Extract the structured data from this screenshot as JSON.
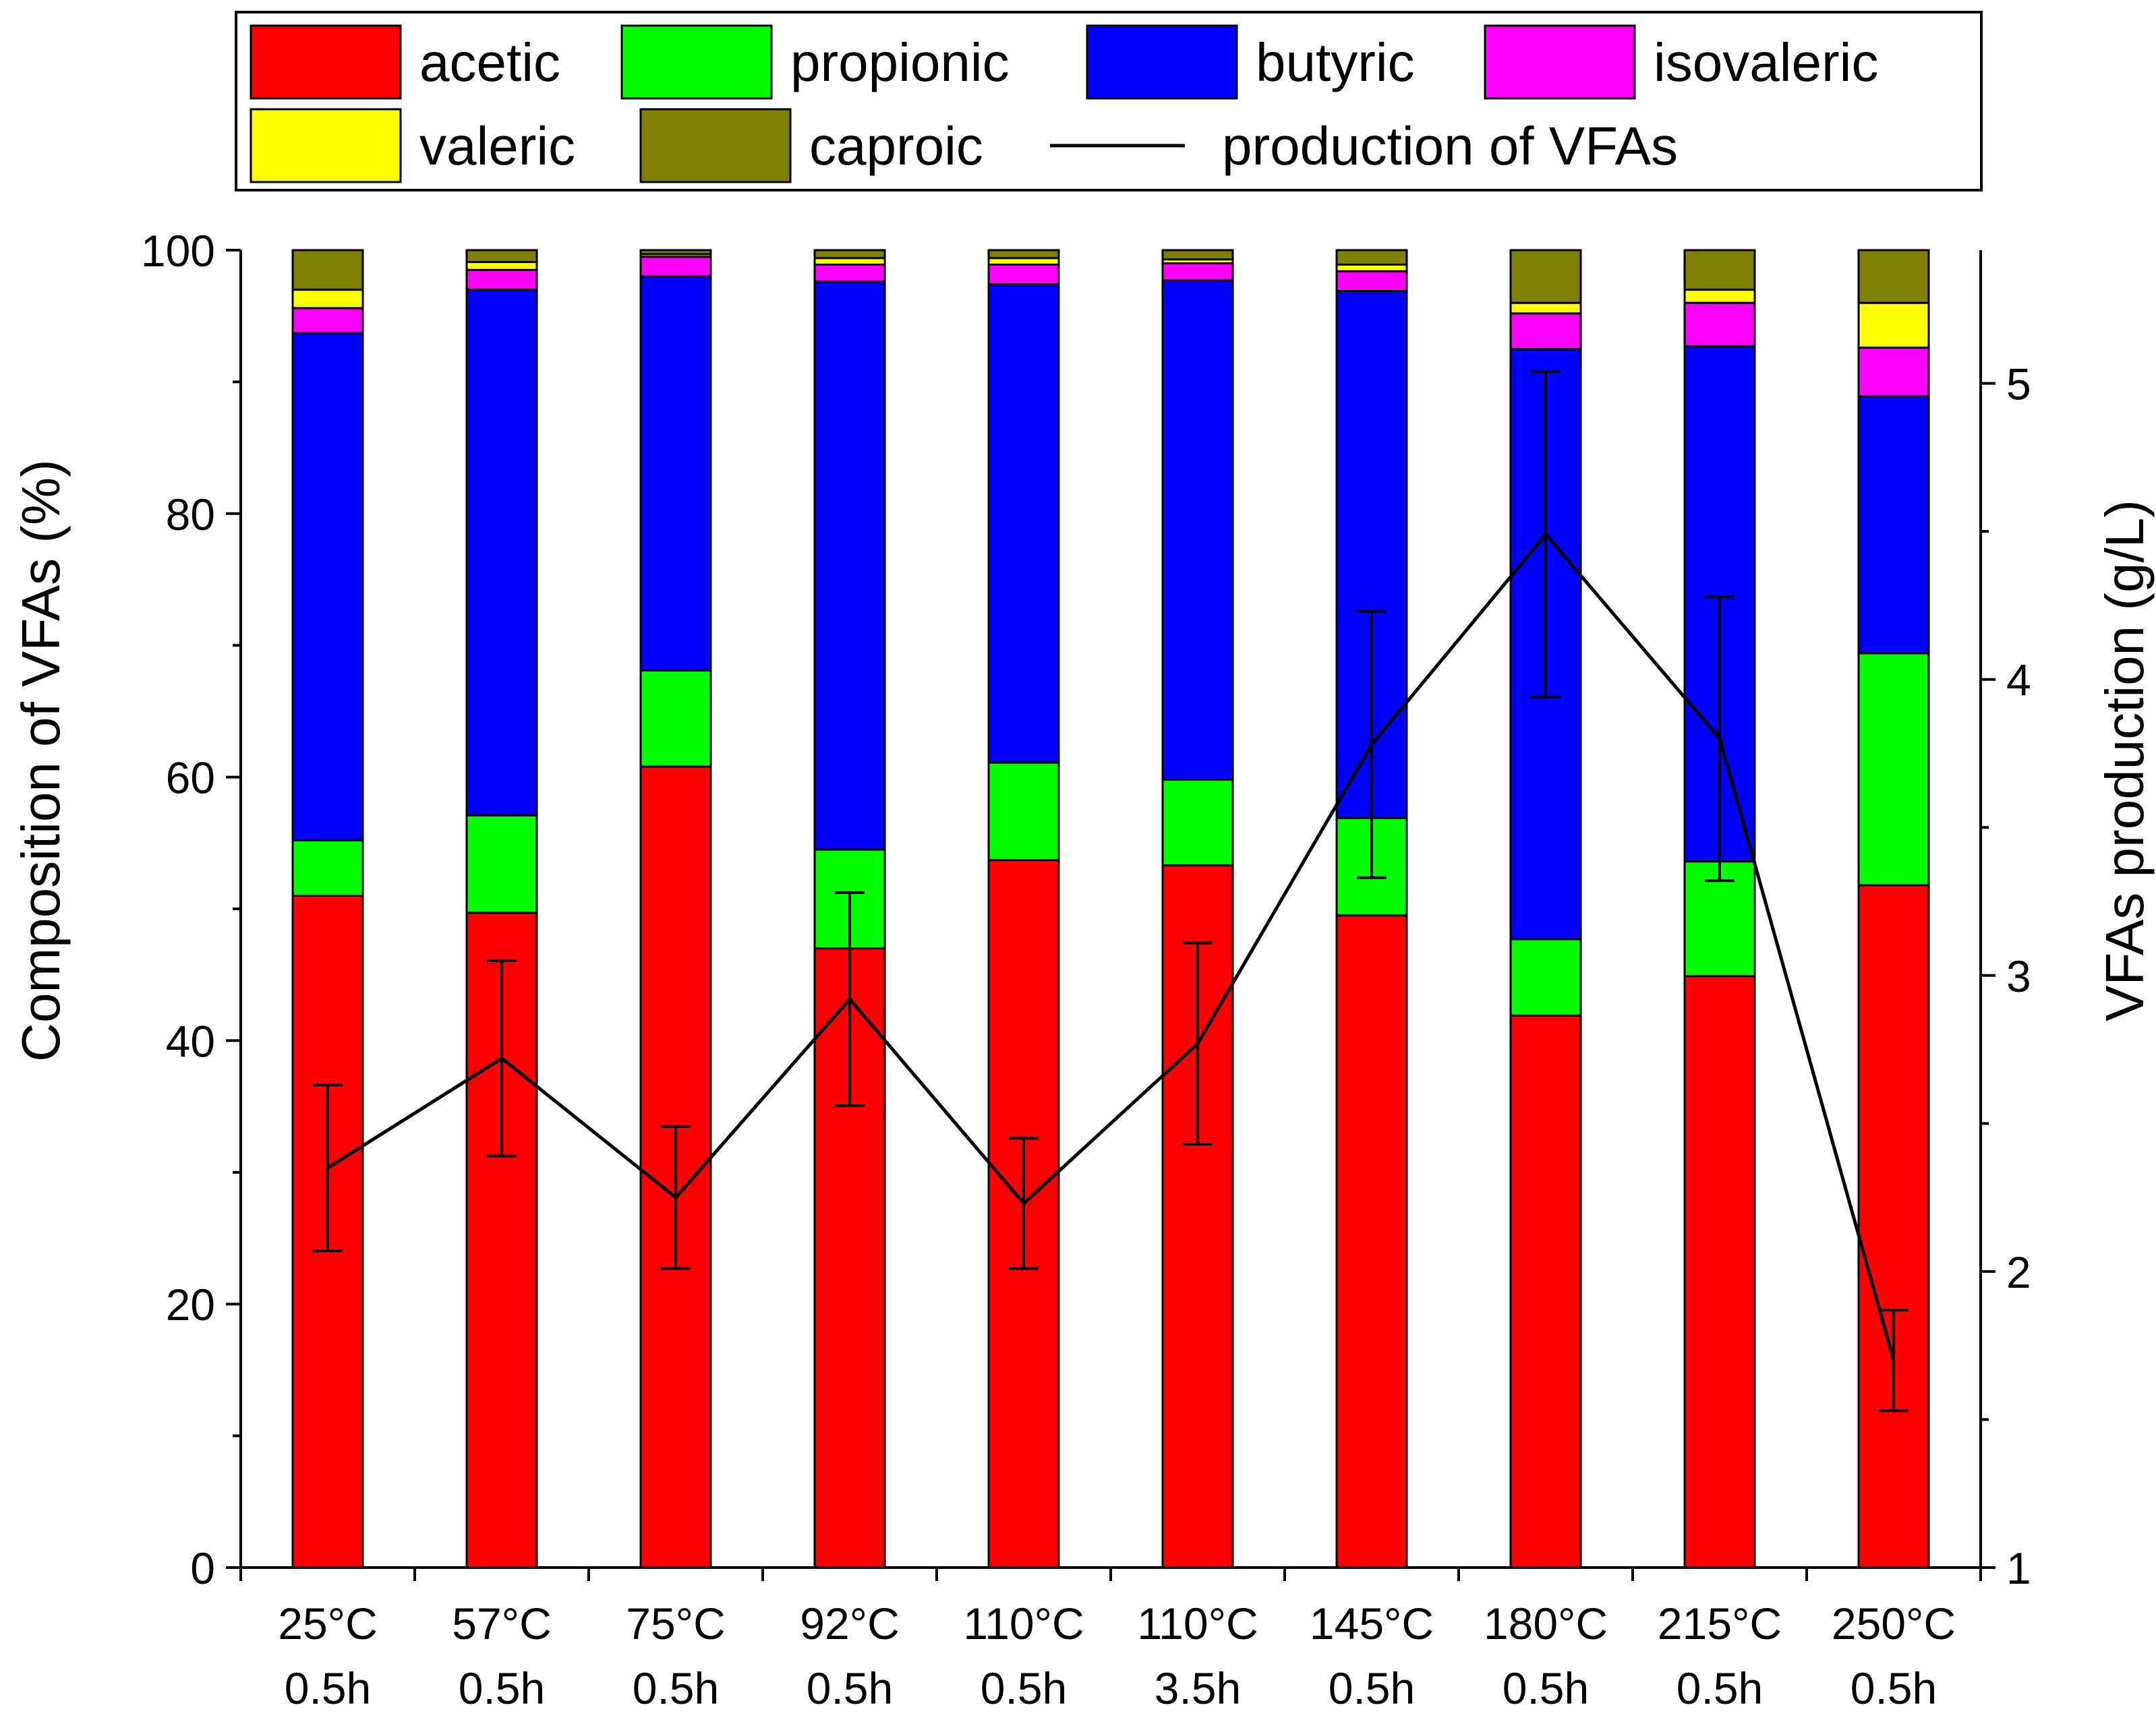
{
  "chart_data": {
    "type": "bar",
    "stacked": true,
    "categories": [
      [
        "25°C",
        "0.5h"
      ],
      [
        "57°C",
        "0.5h"
      ],
      [
        "75°C",
        "0.5h"
      ],
      [
        "92°C",
        "0.5h"
      ],
      [
        "110°C",
        "0.5h"
      ],
      [
        "110°C",
        "3.5h"
      ],
      [
        "145°C",
        "0.5h"
      ],
      [
        "180°C",
        "0.5h"
      ],
      [
        "215°C",
        "0.5h"
      ],
      [
        "250°C",
        "0.5h"
      ]
    ],
    "series": [
      {
        "name": "acetic",
        "color": "#ff0000",
        "values": [
          51.0,
          49.7,
          60.8,
          47.0,
          53.7,
          53.3,
          49.5,
          41.9,
          44.9,
          51.8
        ]
      },
      {
        "name": "propionic",
        "color": "#00ff00",
        "values": [
          4.2,
          7.4,
          7.3,
          7.5,
          7.4,
          6.5,
          7.4,
          5.8,
          8.7,
          17.6
        ]
      },
      {
        "name": "butyric",
        "color": "#0000ff",
        "values": [
          38.5,
          39.9,
          29.9,
          43.1,
          36.3,
          37.9,
          40.0,
          44.8,
          39.1,
          19.5
        ]
      },
      {
        "name": "isovaleric",
        "color": "#ff00ff",
        "values": [
          1.9,
          1.5,
          1.5,
          1.3,
          1.5,
          1.3,
          1.5,
          2.7,
          3.3,
          3.7
        ]
      },
      {
        "name": "valeric",
        "color": "#ffff00",
        "values": [
          1.4,
          0.6,
          0.2,
          0.5,
          0.5,
          0.3,
          0.5,
          0.8,
          1.0,
          3.4
        ]
      },
      {
        "name": "caproic",
        "color": "#808000",
        "values": [
          3.0,
          0.9,
          0.3,
          0.6,
          0.6,
          0.7,
          1.1,
          4.0,
          3.0,
          4.0
        ]
      }
    ],
    "line_series": {
      "name": "production of VFAs",
      "color": "#000000",
      "values": [
        2.35,
        2.72,
        2.25,
        2.92,
        2.23,
        2.77,
        3.78,
        4.49,
        3.8,
        1.7
      ],
      "error": [
        0.28,
        0.33,
        0.24,
        0.36,
        0.22,
        0.34,
        0.45,
        0.55,
        0.48,
        0.17
      ]
    },
    "ylabel": "Composition of VFAs (%)",
    "ylim": [
      0,
      100
    ],
    "yticks": [
      "0",
      "20",
      "40",
      "60",
      "80",
      "100"
    ],
    "y2label": "VFAs production (g/L)",
    "y2lim": [
      1,
      5.45
    ],
    "y2ticks": [
      "1",
      "2",
      "3",
      "4",
      "5"
    ],
    "legend_position": "top",
    "legend_items": [
      "acetic",
      "propionic",
      "butyric",
      "isovaleric",
      "valeric",
      "caproic",
      "production of VFAs"
    ]
  }
}
